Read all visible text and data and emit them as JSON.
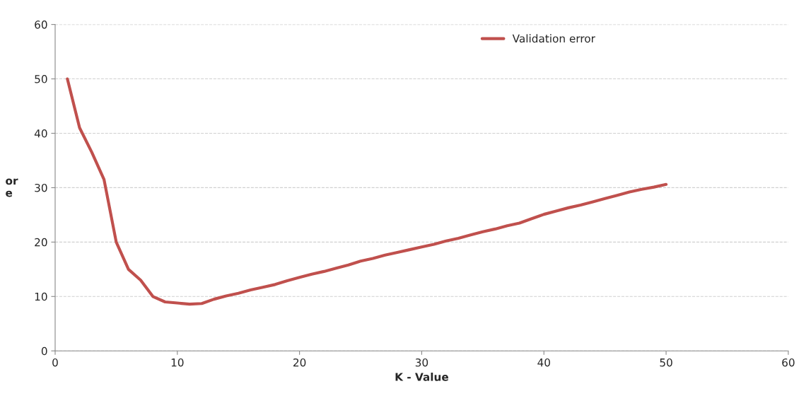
{
  "chart_data": {
    "type": "line",
    "xlabel": "K - Value",
    "ylabel": "or\ne",
    "series": [
      {
        "name": "Validation error",
        "color": "#c0504d",
        "x": [
          1,
          2,
          3,
          4,
          5,
          6,
          7,
          8,
          9,
          10,
          11,
          12,
          13,
          14,
          15,
          16,
          17,
          18,
          19,
          20,
          21,
          22,
          23,
          24,
          25,
          26,
          27,
          28,
          29,
          30,
          31,
          32,
          33,
          34,
          35,
          36,
          37,
          38,
          39,
          40,
          41,
          42,
          43,
          44,
          45,
          46,
          47,
          48,
          49,
          50
        ],
        "values": [
          50,
          41,
          36.5,
          31.5,
          20,
          15,
          13,
          10,
          9,
          8.8,
          8.6,
          8.7,
          9.5,
          10.1,
          10.6,
          11.2,
          11.7,
          12.2,
          12.9,
          13.5,
          14.1,
          14.6,
          15.2,
          15.8,
          16.5,
          17.0,
          17.6,
          18.1,
          18.6,
          19.1,
          19.6,
          20.2,
          20.7,
          21.3,
          21.9,
          22.4,
          23.0,
          23.5,
          24.3,
          25.1,
          25.7,
          26.3,
          26.8,
          27.4,
          28.0,
          28.6,
          29.2,
          29.7,
          30.1,
          30.6
        ]
      }
    ],
    "xlim": [
      0,
      60
    ],
    "xticks": [
      0,
      10,
      20,
      30,
      40,
      50,
      60
    ],
    "ylim": [
      0,
      60
    ],
    "yticks": [
      0,
      10,
      20,
      30,
      40,
      50,
      60
    ],
    "grid": "y",
    "legend": "top right",
    "marker": "none",
    "line_style": "solid"
  }
}
